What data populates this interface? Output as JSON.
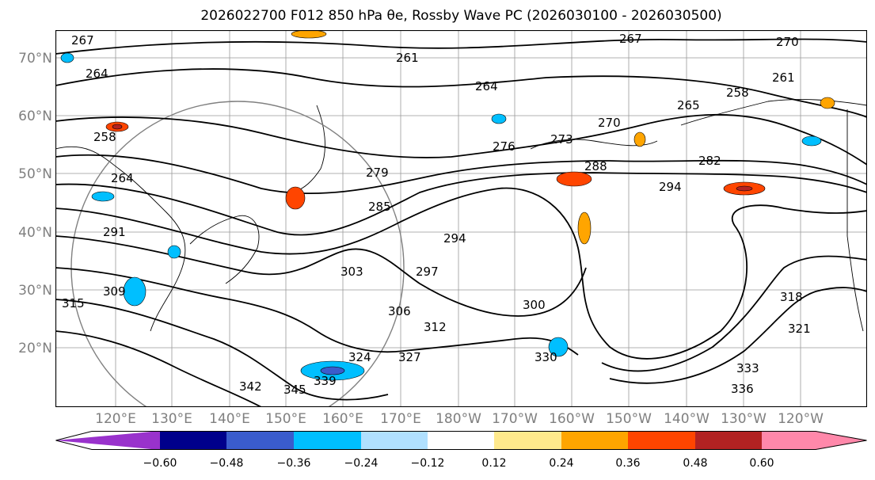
{
  "title": "2026022700 F012 850 hPa θe, Rossby Wave PC (2026030100 - 2026030500)",
  "map": {
    "lat_labels": [
      "70°N",
      "60°N",
      "50°N",
      "40°N",
      "30°N",
      "20°N"
    ],
    "lon_labels": [
      "120°E",
      "130°E",
      "140°E",
      "150°E",
      "160°E",
      "170°E",
      "180°W",
      "170°W",
      "160°W",
      "150°W",
      "140°W",
      "130°W",
      "120°W"
    ],
    "contour_labels": [
      "267",
      "267",
      "270",
      "264",
      "261",
      "264",
      "258",
      "261",
      "258",
      "265",
      "270",
      "276",
      "273",
      "279",
      "288",
      "282",
      "264",
      "285",
      "294",
      "291",
      "294",
      "297",
      "303",
      "300",
      "309",
      "306",
      "312",
      "315",
      "318",
      "321",
      "324",
      "330",
      "327",
      "333",
      "336",
      "339",
      "342",
      "345"
    ],
    "colors": {
      "land_border": "#000000",
      "grid": "#999999",
      "contour": "#000000",
      "circle_outline": "#808080"
    }
  },
  "colorbar": {
    "ticks": [
      "−0.60",
      "−0.48",
      "−0.36",
      "−0.24",
      "−0.12",
      "0.12",
      "0.24",
      "0.36",
      "0.48",
      "0.60"
    ],
    "segment_colors": [
      "#9932cc",
      "#00008b",
      "#3a5ccc",
      "#00bfff",
      "#b0e0ff",
      "#ffffff",
      "#ffe98c",
      "#ffa500",
      "#ff4500",
      "#b22222",
      "#ff88aa",
      "#ff88aa"
    ]
  }
}
